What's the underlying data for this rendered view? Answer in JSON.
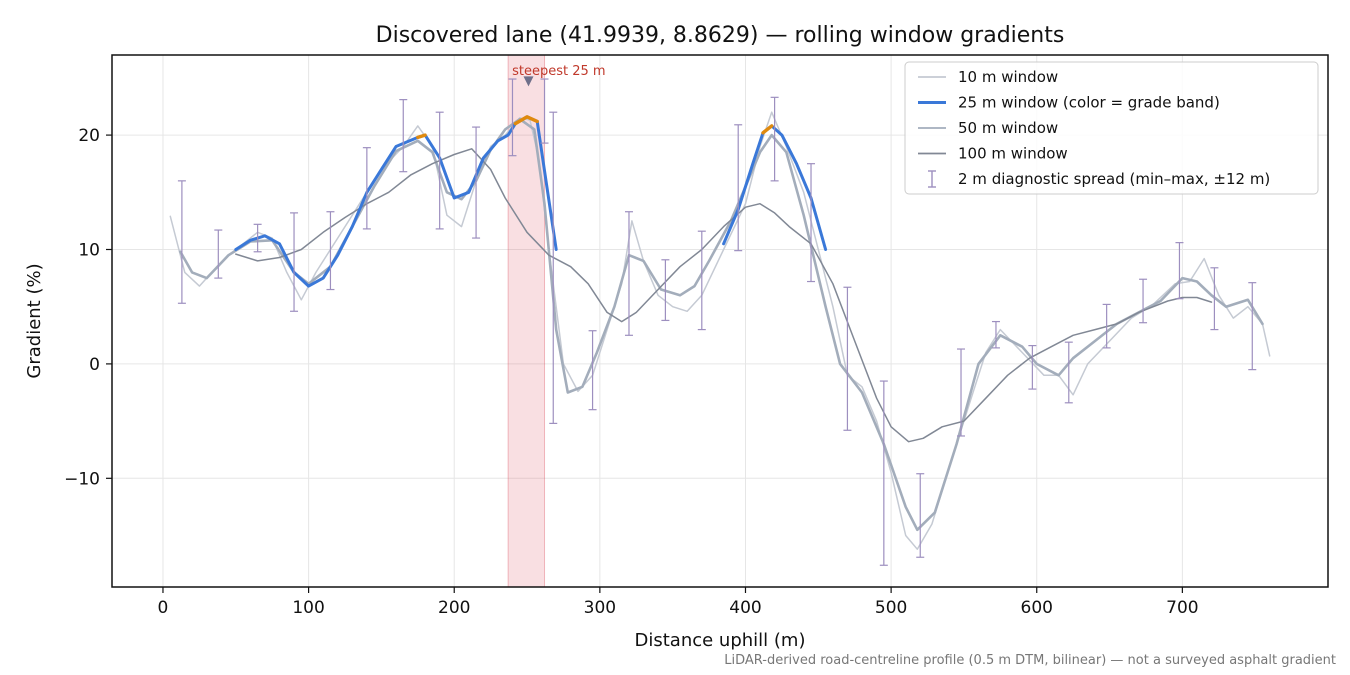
{
  "chart_data": {
    "type": "line",
    "title": "Discovered lane (41.9939, 8.8629) — rolling window gradients",
    "xlabel": "Distance uphill (m)",
    "ylabel": "Gradient (%)",
    "xlim": [
      -35,
      800
    ],
    "ylim": [
      -19.5,
      27
    ],
    "x_ticks": [
      0,
      100,
      200,
      300,
      400,
      500,
      600,
      700
    ],
    "y_ticks": [
      -10,
      0,
      10,
      20
    ],
    "grid": true,
    "legend_position": "top-right",
    "footnote": "LiDAR-derived road-centreline profile (0.5 m DTM, bilinear) — not a surveyed asphalt gradient",
    "highlight": {
      "x_range": [
        237,
        262
      ],
      "label": "steepest 25 m",
      "marker_x": 251,
      "marker_y": 24.7,
      "color": "#d94452"
    },
    "grade_band_colors": {
      "normal": "#3a78d8",
      "steep": "#e08a0e"
    },
    "series": [
      {
        "name": "10 m window",
        "color": "#c5cad3",
        "points": [
          [
            5,
            12.9
          ],
          [
            15,
            8
          ],
          [
            25,
            6.8
          ],
          [
            35,
            8.2
          ],
          [
            45,
            9.5
          ],
          [
            55,
            10.5
          ],
          [
            65,
            11.5
          ],
          [
            75,
            11
          ],
          [
            85,
            8
          ],
          [
            95,
            5.6
          ],
          [
            105,
            8
          ],
          [
            120,
            11
          ],
          [
            135,
            14
          ],
          [
            150,
            17
          ],
          [
            165,
            19
          ],
          [
            175,
            20.8
          ],
          [
            185,
            19
          ],
          [
            195,
            13
          ],
          [
            205,
            12
          ],
          [
            215,
            16
          ],
          [
            225,
            19
          ],
          [
            235,
            20
          ],
          [
            245,
            21.5
          ],
          [
            252,
            21.3
          ],
          [
            258,
            18
          ],
          [
            265,
            10
          ],
          [
            275,
            0
          ],
          [
            285,
            -2.4
          ],
          [
            295,
            -1
          ],
          [
            305,
            3
          ],
          [
            315,
            7
          ],
          [
            322,
            12.5
          ],
          [
            330,
            9
          ],
          [
            340,
            6
          ],
          [
            350,
            5
          ],
          [
            360,
            4.6
          ],
          [
            370,
            6
          ],
          [
            385,
            10
          ],
          [
            400,
            14
          ],
          [
            410,
            19
          ],
          [
            418,
            22
          ],
          [
            428,
            19
          ],
          [
            440,
            15
          ],
          [
            450,
            10
          ],
          [
            460,
            5
          ],
          [
            470,
            -1
          ],
          [
            480,
            -2
          ],
          [
            490,
            -5
          ],
          [
            500,
            -9.5
          ],
          [
            510,
            -15
          ],
          [
            518,
            -16.2
          ],
          [
            528,
            -14
          ],
          [
            540,
            -9
          ],
          [
            555,
            -3
          ],
          [
            565,
            1
          ],
          [
            575,
            3
          ],
          [
            590,
            1
          ],
          [
            605,
            -1
          ],
          [
            615,
            -1
          ],
          [
            625,
            -2.7
          ],
          [
            635,
            0
          ],
          [
            650,
            2
          ],
          [
            665,
            4
          ],
          [
            680,
            5.2
          ],
          [
            695,
            7
          ],
          [
            705,
            7.2
          ],
          [
            715,
            9.2
          ],
          [
            725,
            6
          ],
          [
            735,
            4
          ],
          [
            745,
            5
          ],
          [
            755,
            3.5
          ],
          [
            760,
            0.7
          ]
        ]
      },
      {
        "name": "25 m window (color = grade band)",
        "color": "#3a78d8",
        "bold": true,
        "points": [
          [
            50,
            10
          ],
          [
            60,
            10.8
          ],
          [
            70,
            11.2
          ],
          [
            80,
            10.5
          ],
          [
            90,
            8
          ],
          [
            100,
            6.8
          ],
          [
            110,
            7.5
          ],
          [
            120,
            9.5
          ],
          [
            130,
            12
          ],
          [
            140,
            15
          ],
          [
            150,
            17
          ],
          [
            160,
            19
          ],
          [
            175,
            19.8
          ],
          [
            180,
            20
          ],
          [
            190,
            18
          ],
          [
            200,
            14.5
          ],
          [
            210,
            15
          ],
          [
            220,
            18
          ],
          [
            230,
            19.5
          ],
          [
            237,
            20
          ],
          [
            242,
            21
          ],
          [
            250,
            21.6
          ],
          [
            257,
            21.2
          ],
          [
            263,
            16
          ],
          [
            270,
            10
          ]
        ],
        "points_b": [
          [
            385,
            10.5
          ],
          [
            395,
            13.5
          ],
          [
            405,
            17.5
          ],
          [
            412,
            20.2
          ],
          [
            418,
            20.8
          ],
          [
            425,
            20
          ],
          [
            435,
            17.5
          ],
          [
            445,
            14.5
          ],
          [
            455,
            10
          ]
        ],
        "steep_ranges": [
          [
            172,
            182
          ],
          [
            238,
            260
          ],
          [
            410,
            424
          ]
        ]
      },
      {
        "name": "50 m window",
        "color": "#a3adbb",
        "points": [
          [
            12,
            9.8
          ],
          [
            20,
            8
          ],
          [
            30,
            7.5
          ],
          [
            45,
            9.5
          ],
          [
            60,
            10.7
          ],
          [
            75,
            10.8
          ],
          [
            90,
            8
          ],
          [
            100,
            7
          ],
          [
            115,
            8.5
          ],
          [
            130,
            12
          ],
          [
            145,
            15.5
          ],
          [
            160,
            18.6
          ],
          [
            175,
            19.5
          ],
          [
            185,
            18.5
          ],
          [
            195,
            15
          ],
          [
            205,
            14.4
          ],
          [
            215,
            16
          ],
          [
            225,
            18.7
          ],
          [
            235,
            20.5
          ],
          [
            245,
            21.4
          ],
          [
            255,
            20.5
          ],
          [
            262,
            14
          ],
          [
            270,
            3
          ],
          [
            278,
            -2.5
          ],
          [
            288,
            -2
          ],
          [
            298,
            1
          ],
          [
            310,
            5
          ],
          [
            320,
            9.5
          ],
          [
            330,
            9
          ],
          [
            342,
            6.5
          ],
          [
            355,
            6
          ],
          [
            365,
            6.8
          ],
          [
            375,
            9
          ],
          [
            390,
            12.5
          ],
          [
            400,
            15.5
          ],
          [
            410,
            18.5
          ],
          [
            418,
            20
          ],
          [
            428,
            18.5
          ],
          [
            440,
            13
          ],
          [
            455,
            5
          ],
          [
            465,
            0
          ],
          [
            480,
            -2.5
          ],
          [
            495,
            -7
          ],
          [
            510,
            -12.5
          ],
          [
            518,
            -14.5
          ],
          [
            530,
            -13
          ],
          [
            545,
            -7
          ],
          [
            560,
            0
          ],
          [
            575,
            2.5
          ],
          [
            590,
            1.5
          ],
          [
            600,
            0
          ],
          [
            615,
            -1
          ],
          [
            625,
            0.5
          ],
          [
            640,
            2
          ],
          [
            655,
            3.5
          ],
          [
            670,
            4.5
          ],
          [
            685,
            5.5
          ],
          [
            700,
            7.5
          ],
          [
            710,
            7.2
          ],
          [
            720,
            6
          ],
          [
            730,
            5
          ],
          [
            745,
            5.6
          ],
          [
            755,
            3.5
          ]
        ]
      },
      {
        "name": "100 m window",
        "color": "#818895",
        "points": [
          [
            50,
            9.6
          ],
          [
            65,
            9
          ],
          [
            80,
            9.3
          ],
          [
            95,
            10
          ],
          [
            110,
            11.5
          ],
          [
            125,
            12.8
          ],
          [
            140,
            14
          ],
          [
            155,
            15
          ],
          [
            170,
            16.5
          ],
          [
            185,
            17.5
          ],
          [
            200,
            18.3
          ],
          [
            212,
            18.8
          ],
          [
            225,
            17
          ],
          [
            235,
            14.5
          ],
          [
            250,
            11.5
          ],
          [
            265,
            9.5
          ],
          [
            280,
            8.5
          ],
          [
            292,
            7
          ],
          [
            305,
            4.5
          ],
          [
            315,
            3.7
          ],
          [
            325,
            4.5
          ],
          [
            340,
            6.5
          ],
          [
            355,
            8.5
          ],
          [
            370,
            10
          ],
          [
            385,
            12
          ],
          [
            400,
            13.7
          ],
          [
            410,
            14
          ],
          [
            420,
            13.2
          ],
          [
            430,
            12
          ],
          [
            445,
            10.5
          ],
          [
            460,
            7
          ],
          [
            475,
            2
          ],
          [
            490,
            -3
          ],
          [
            500,
            -5.5
          ],
          [
            512,
            -6.8
          ],
          [
            522,
            -6.5
          ],
          [
            535,
            -5.5
          ],
          [
            550,
            -5
          ],
          [
            565,
            -3
          ],
          [
            580,
            -1
          ],
          [
            595,
            0.5
          ],
          [
            610,
            1.5
          ],
          [
            625,
            2.5
          ],
          [
            640,
            3
          ],
          [
            655,
            3.5
          ],
          [
            670,
            4.5
          ],
          [
            690,
            5.5
          ],
          [
            700,
            5.8
          ],
          [
            710,
            5.8
          ],
          [
            720,
            5.4
          ]
        ]
      }
    ],
    "spread_series": {
      "name": "2 m diagnostic spread (min–max, ±12 m)",
      "color": "#9d8fbf",
      "bars": [
        [
          13,
          5.3,
          16
        ],
        [
          38,
          7.5,
          11.7
        ],
        [
          65,
          9.8,
          12.2
        ],
        [
          90,
          4.6,
          13.2
        ],
        [
          115,
          6.5,
          13.3
        ],
        [
          140,
          11.8,
          18.9
        ],
        [
          165,
          16.8,
          23.1
        ],
        [
          190,
          11.8,
          22
        ],
        [
          215,
          11,
          20.7
        ],
        [
          240,
          18.2,
          24.9
        ],
        [
          262,
          19.3,
          24.9
        ],
        [
          268,
          -5.2,
          22
        ],
        [
          295,
          -4,
          2.9
        ],
        [
          320,
          2.5,
          13.3
        ],
        [
          345,
          3.8,
          9.1
        ],
        [
          370,
          3,
          11.6
        ],
        [
          395,
          9.9,
          20.9
        ],
        [
          420,
          16,
          23.3
        ],
        [
          445,
          7.2,
          17.5
        ],
        [
          470,
          -5.8,
          6.7
        ],
        [
          495,
          -17.6,
          -1.5
        ],
        [
          520,
          -16.9,
          -9.6
        ],
        [
          548,
          -6.3,
          1.3
        ],
        [
          572,
          1.4,
          3.7
        ],
        [
          597,
          -2.2,
          1.6
        ],
        [
          622,
          -3.4,
          1.9
        ],
        [
          648,
          1.4,
          5.2
        ],
        [
          673,
          3.6,
          7.4
        ],
        [
          698,
          5.7,
          10.6
        ],
        [
          722,
          3,
          8.4
        ],
        [
          748,
          -0.5,
          7.1
        ]
      ]
    }
  }
}
